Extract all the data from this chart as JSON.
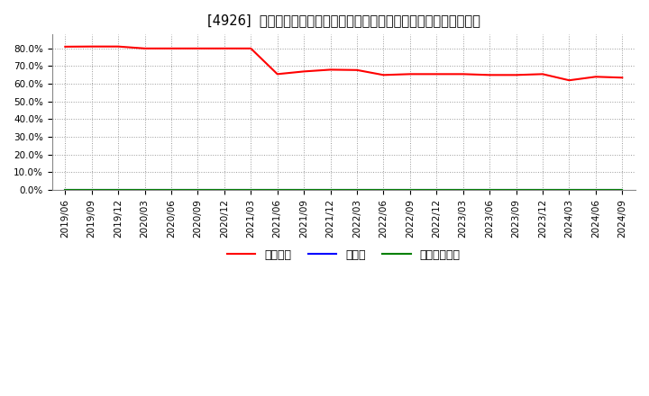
{
  "title": "[4926]  自己資本、のれん、繰延税金資産の総資産に対する比率の推移",
  "x_labels": [
    "2019/06",
    "2019/09",
    "2019/12",
    "2020/03",
    "2020/06",
    "2020/09",
    "2020/12",
    "2021/03",
    "2021/06",
    "2021/09",
    "2021/12",
    "2022/03",
    "2022/06",
    "2022/09",
    "2022/12",
    "2023/03",
    "2023/06",
    "2023/09",
    "2023/12",
    "2024/03",
    "2024/06",
    "2024/09"
  ],
  "jikoshihon": [
    0.81,
    0.811,
    0.811,
    0.8,
    0.8,
    0.8,
    0.8,
    0.8,
    0.655,
    0.67,
    0.68,
    0.678,
    0.65,
    0.655,
    0.655,
    0.655,
    0.65,
    0.65,
    0.655,
    0.62,
    0.64,
    0.635
  ],
  "noren": [
    0,
    0,
    0,
    0,
    0,
    0,
    0,
    0,
    0,
    0,
    0,
    0,
    0,
    0,
    0,
    0,
    0,
    0,
    0,
    0,
    0,
    0
  ],
  "kurinobe": [
    0,
    0,
    0,
    0,
    0,
    0,
    0,
    0,
    0,
    0,
    0,
    0,
    0,
    0,
    0,
    0,
    0,
    0,
    0,
    0,
    0,
    0
  ],
  "jikoshihon_color": "#ff0000",
  "noren_color": "#0000ff",
  "kurinobe_color": "#008000",
  "legend_labels": [
    "自己資本",
    "のれん",
    "繰延税金資産"
  ],
  "ylim": [
    0.0,
    0.88
  ],
  "yticks": [
    0.0,
    0.1,
    0.2,
    0.3,
    0.4,
    0.5,
    0.6,
    0.7,
    0.8
  ],
  "background_color": "#ffffff",
  "plot_bg_color": "#ffffff",
  "grid_color": "#999999",
  "title_fontsize": 10.5,
  "tick_fontsize": 7.5,
  "legend_fontsize": 9
}
